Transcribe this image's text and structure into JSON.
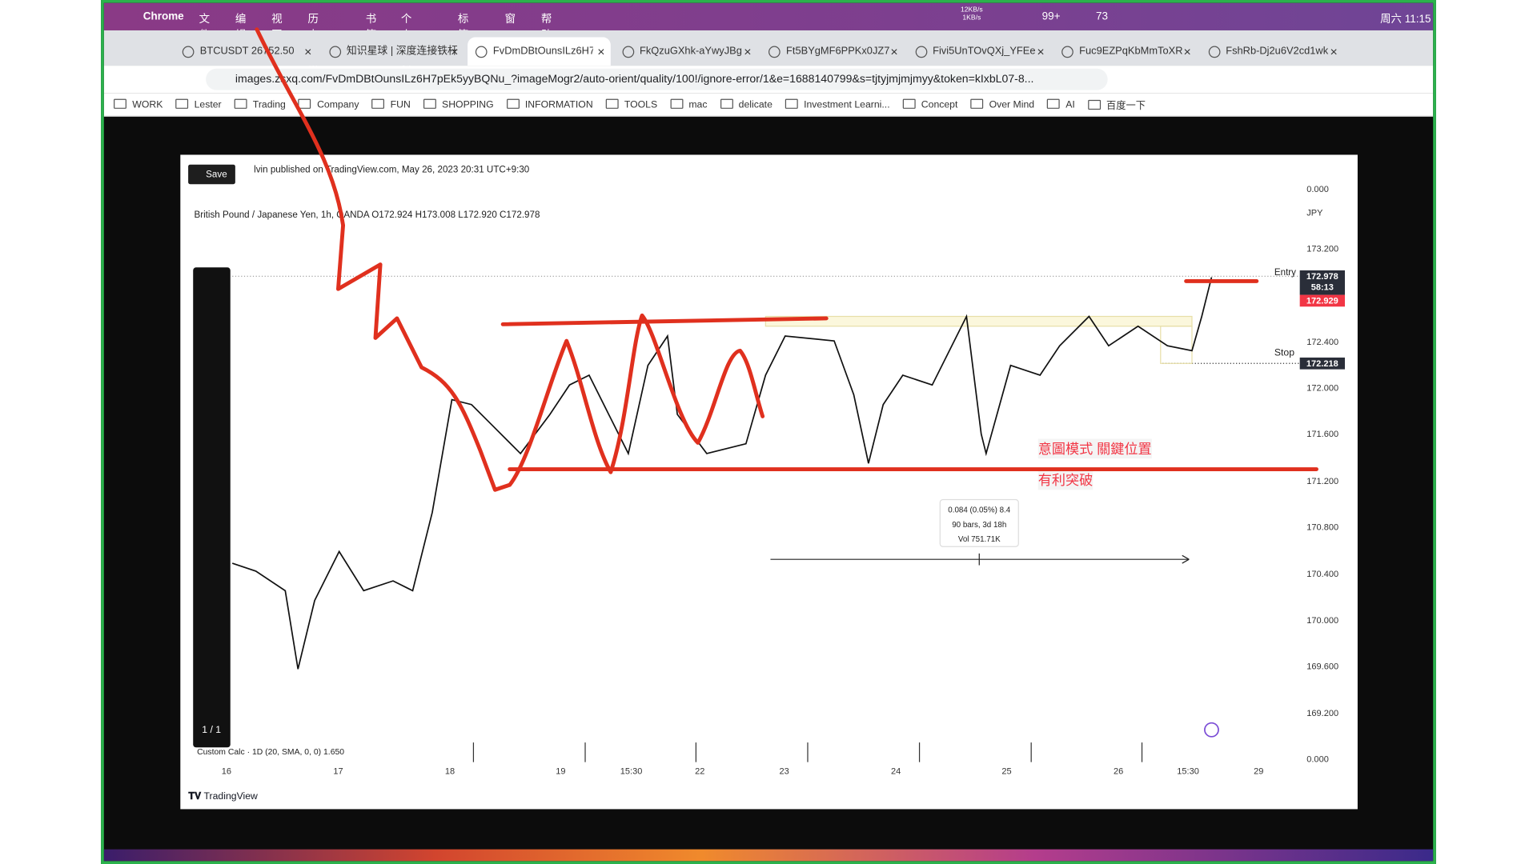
{
  "menu_bar": {
    "app": "Chrome",
    "items": [
      "文件",
      "编辑",
      "视图",
      "历史记录",
      "书签",
      "个人资料",
      "标签页",
      "窗口",
      "帮助"
    ],
    "status": {
      "net_up": "12KB/s",
      "net_down": "1KB/s",
      "badge": "99+",
      "chat": "73",
      "clock": "周六 11:15"
    }
  },
  "tabs": [
    "BTCUSDT 26752.50",
    "知识星球 | 深度连接铁杆",
    "FvDmDBtOunsILz6H7",
    "FkQzuGXhk-aYwyJBg",
    "Ft5BYgMF6PPKx0JZ7",
    "Fivi5UnTOvQXj_YFEe",
    "Fuc9EZPqKbMmToXR",
    "FshRb-Dj2u6V2cd1wk"
  ],
  "address_bar": {
    "url": "images.zsxq.com/FvDmDBtOunsILz6H7pEk5yyBQNu_?imageMogr2/auto-orient/quality/100!/ignore-error/1&e=1688140799&s=tjtyjmjmjmyy&token=kIxbL07-8..."
  },
  "bookmarks": [
    "WORK",
    "Lester",
    "Trading",
    "Company",
    "FUN",
    "SHOPPING",
    "INFORMATION",
    "TOOLS",
    "mac",
    "delicate",
    "Investment Learni...",
    "Concept",
    "Over Mind",
    "AI",
    "百度一下"
  ],
  "image": {
    "save": "Save",
    "publisher": "lvin published on TradingView.com, May 26, 2023 20:31 UTC+9:30",
    "symbol": "British Pound / Japanese Yen, 1h, OANDA  O172.924  H173.008  L172.920  C172.978",
    "price_axis": [
      "0.000",
      "JPY",
      "173.200",
      "172.400",
      "172.000",
      "171.600",
      "171.200",
      "170.800",
      "170.400",
      "170.000",
      "169.600",
      "169.200",
      "0.000"
    ],
    "price_tags": {
      "last": "172.978",
      "countdown": "58:13",
      "entry": "172.929",
      "stop": "172.218"
    },
    "entry_label": "Entry",
    "stop_label": "Stop",
    "time_axis": [
      "16",
      "17",
      "18",
      "19",
      "15:30",
      "22",
      "23",
      "24",
      "25",
      "26",
      "15:30",
      "29"
    ],
    "indicator": "Custom Calc · 1D (20, SMA, 0, 0)  1.650",
    "measure": [
      "0.084 (0.05%) 8.4",
      "90 bars, 3d 18h",
      "Vol 751.71K"
    ],
    "annotations": [
      "意圖模式 關鍵位置",
      "有利突破"
    ],
    "toolbar_page": "1 / 1",
    "brand": "TradingView"
  }
}
